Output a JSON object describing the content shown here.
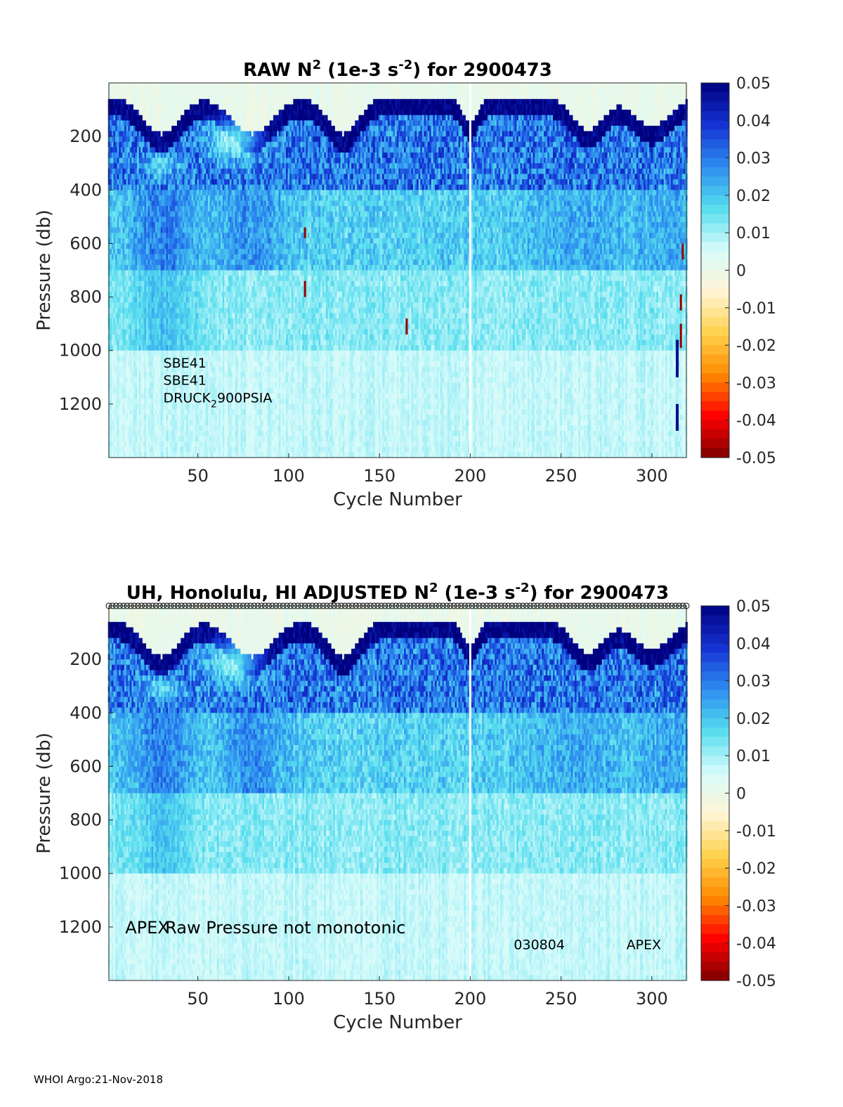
{
  "chart_data": [
    {
      "type": "heatmap",
      "title_parts": {
        "prefix": "RAW N",
        "sup1": "2",
        "mid": " (1e-3 s",
        "sup2": "-2",
        "suffix": ") for 2900473"
      },
      "xlabel": "Cycle Number",
      "ylabel": "Pressure (db)",
      "xlim": [
        1,
        319
      ],
      "ylim": [
        1400,
        0
      ],
      "x_ticks": [
        50,
        100,
        150,
        200,
        250,
        300
      ],
      "y_ticks": [
        200,
        400,
        600,
        800,
        1000,
        1200
      ],
      "clim": [
        -0.05,
        0.05
      ],
      "colorbar_ticks": [
        0.05,
        0.04,
        0.03,
        0.02,
        0.01,
        0,
        -0.01,
        -0.02,
        -0.03,
        -0.04,
        -0.05
      ],
      "colormap": [
        "#7f0000",
        "#ff0000",
        "#ff8c00",
        "#ffd24d",
        "#fff5d6",
        "#d6fbfb",
        "#55ddee",
        "#2d8cf0",
        "#1432d2",
        "#00007f"
      ],
      "gap_cycle": 200,
      "annotations": [
        {
          "text": "SBE41",
          "x": 31,
          "y": 1045
        },
        {
          "text": "SBE41",
          "x": 31,
          "y": 1110
        },
        {
          "text": "DRUCK",
          "x": 31,
          "y": 1175,
          "sub": "2",
          "after": "900PSIA"
        }
      ],
      "negative_marks": [
        {
          "x": 109,
          "y0": 540,
          "y1": 580
        },
        {
          "x": 109,
          "y0": 740,
          "y1": 800
        },
        {
          "x": 165,
          "y0": 880,
          "y1": 940
        },
        {
          "x": 317,
          "y0": 600,
          "y1": 660
        },
        {
          "x": 316,
          "y0": 790,
          "y1": 850
        },
        {
          "x": 316,
          "y0": 900,
          "y1": 990
        }
      ],
      "positive_marks": [
        {
          "x": 314,
          "y0": 960,
          "y1": 1100
        },
        {
          "x": 314,
          "y0": 1200,
          "y1": 1300
        }
      ]
    },
    {
      "type": "heatmap",
      "title_parts": {
        "prefix": "UH, Honolulu, HI  ADJUSTED N",
        "sup1": "2",
        "mid": " (1e-3 s",
        "sup2": "-2",
        "suffix": ") for 2900473"
      },
      "xlabel": "Cycle Number",
      "ylabel": "Pressure (db)",
      "xlim": [
        1,
        319
      ],
      "ylim": [
        1400,
        0
      ],
      "x_ticks": [
        50,
        100,
        150,
        200,
        250,
        300
      ],
      "y_ticks": [
        200,
        400,
        600,
        800,
        1000,
        1200
      ],
      "clim": [
        -0.05,
        0.05
      ],
      "colorbar_ticks": [
        0.05,
        0.04,
        0.03,
        0.02,
        0.01,
        0,
        -0.01,
        -0.02,
        -0.03,
        -0.04,
        -0.05
      ],
      "colormap": [
        "#7f0000",
        "#ff0000",
        "#ff8c00",
        "#ffd24d",
        "#fff5d6",
        "#d6fbfb",
        "#55ddee",
        "#2d8cf0",
        "#1432d2",
        "#00007f"
      ],
      "gap_cycle": 200,
      "qc_markers": "open circles along top edge",
      "annotations": [
        {
          "text": "APEX",
          "x": 10,
          "y": 1200,
          "size": "large"
        },
        {
          "text": "Raw Pressure not monotonic",
          "x": 32,
          "y": 1200,
          "size": "large"
        },
        {
          "text": "030804",
          "x": 224,
          "y": 1265
        },
        {
          "text": "APEX",
          "x": 286,
          "y": 1265
        }
      ],
      "negative_marks": [],
      "positive_marks": []
    }
  ],
  "footer": "WHOI Argo:21-Nov-2018"
}
